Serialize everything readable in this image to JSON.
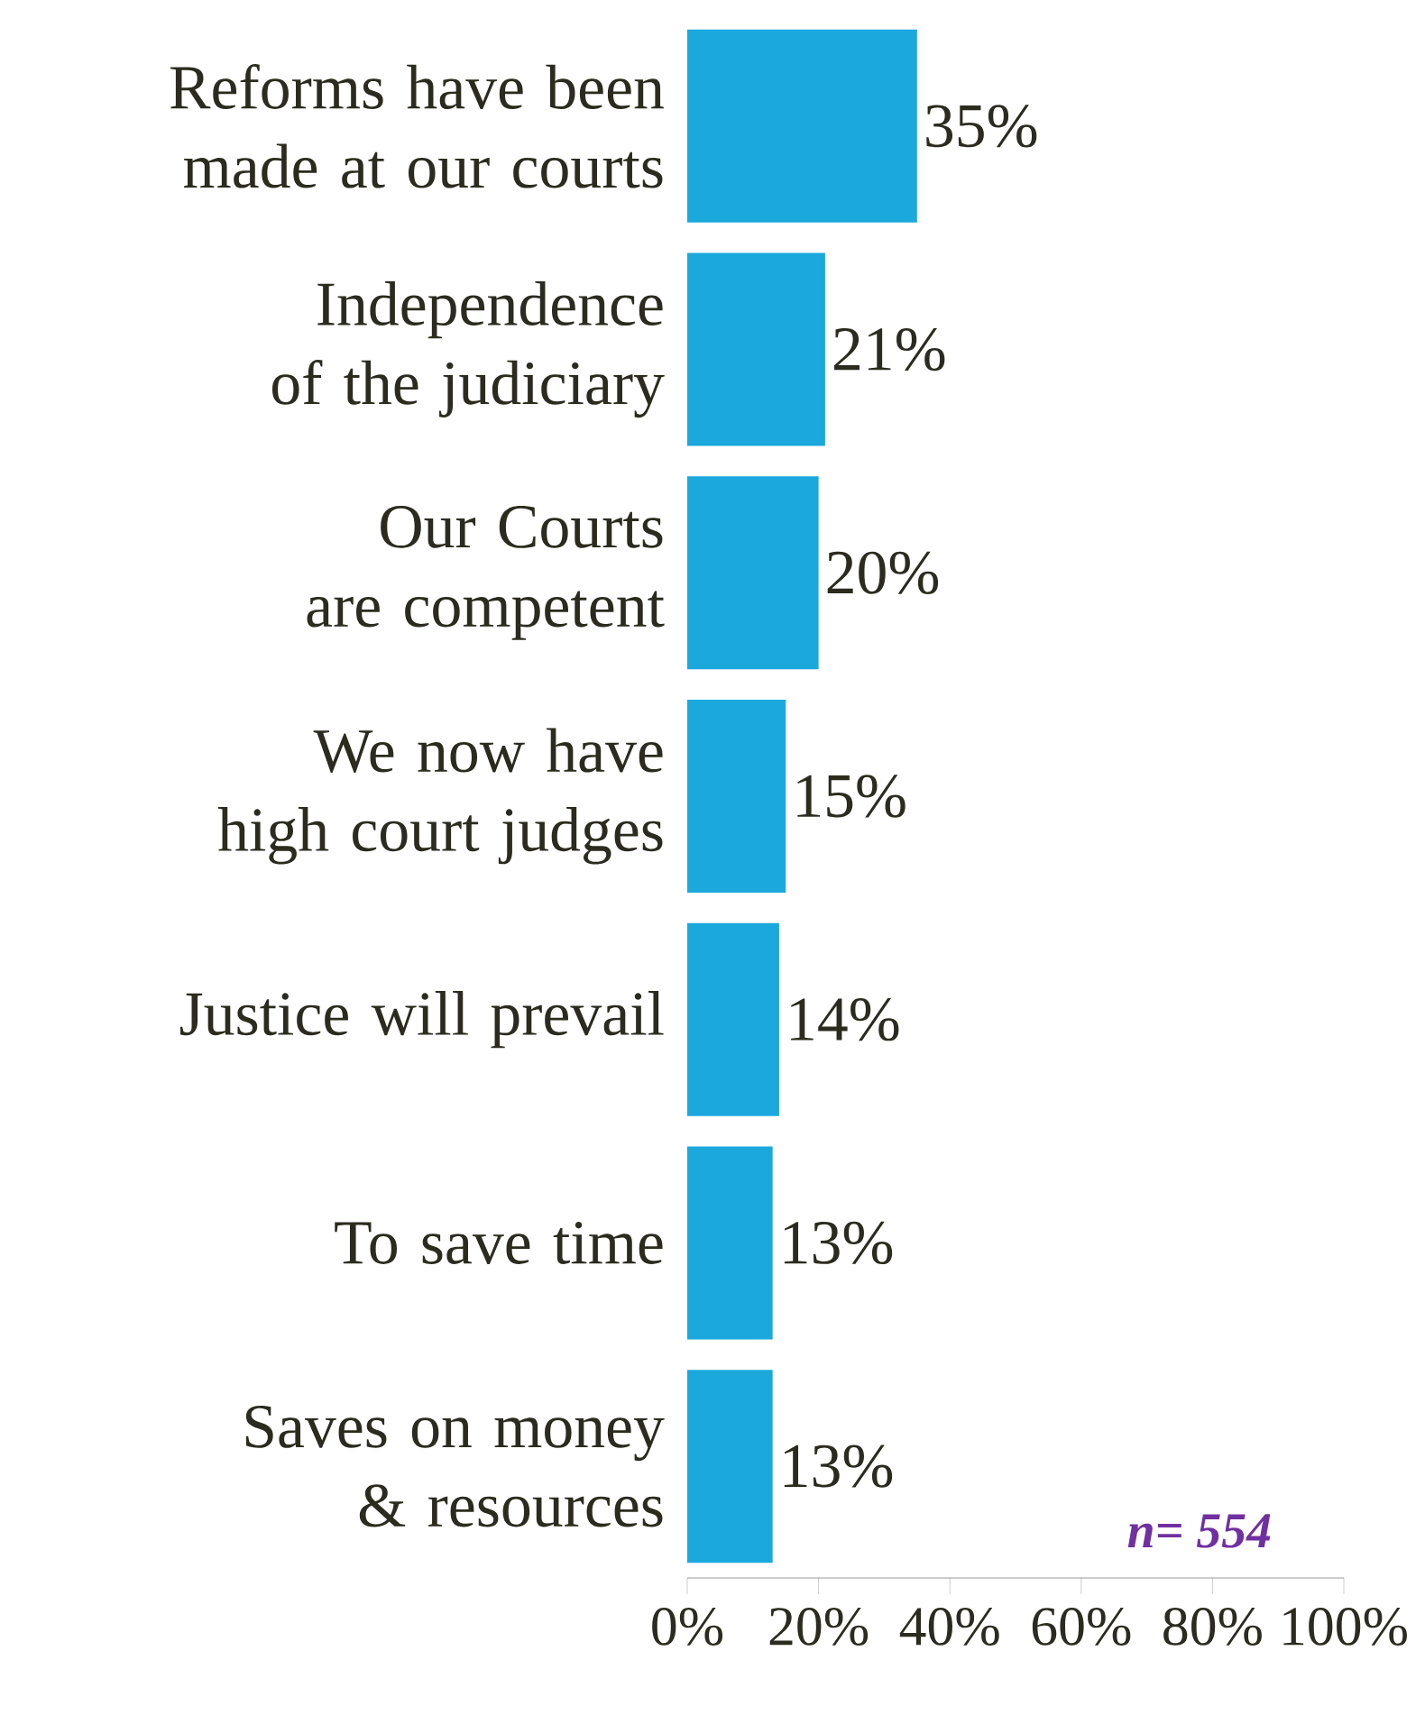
{
  "chart_data": {
    "type": "bar",
    "orientation": "horizontal",
    "categories": [
      "Reforms have been made at our courts",
      "Independence of the judiciary",
      "Our Courts are competent",
      "We now have high court judges",
      "Justice will prevail",
      "To save time",
      "Saves on money & resources"
    ],
    "values": [
      35,
      21,
      20,
      15,
      14,
      13,
      13
    ],
    "value_labels": [
      "35%",
      "21%",
      "20%",
      "15%",
      "14%",
      "13%",
      "13%"
    ],
    "color": "#1ba8dd",
    "xlim": [
      0,
      100
    ],
    "xticks": [
      {
        "value": 0,
        "label": "0%"
      },
      {
        "value": 20,
        "label": "20%"
      },
      {
        "value": 40,
        "label": "40%"
      },
      {
        "value": 60,
        "label": "60%"
      },
      {
        "value": 80,
        "label": "80%"
      },
      {
        "value": 100,
        "label": "100%"
      }
    ],
    "annotations": [
      "n= 554"
    ]
  }
}
